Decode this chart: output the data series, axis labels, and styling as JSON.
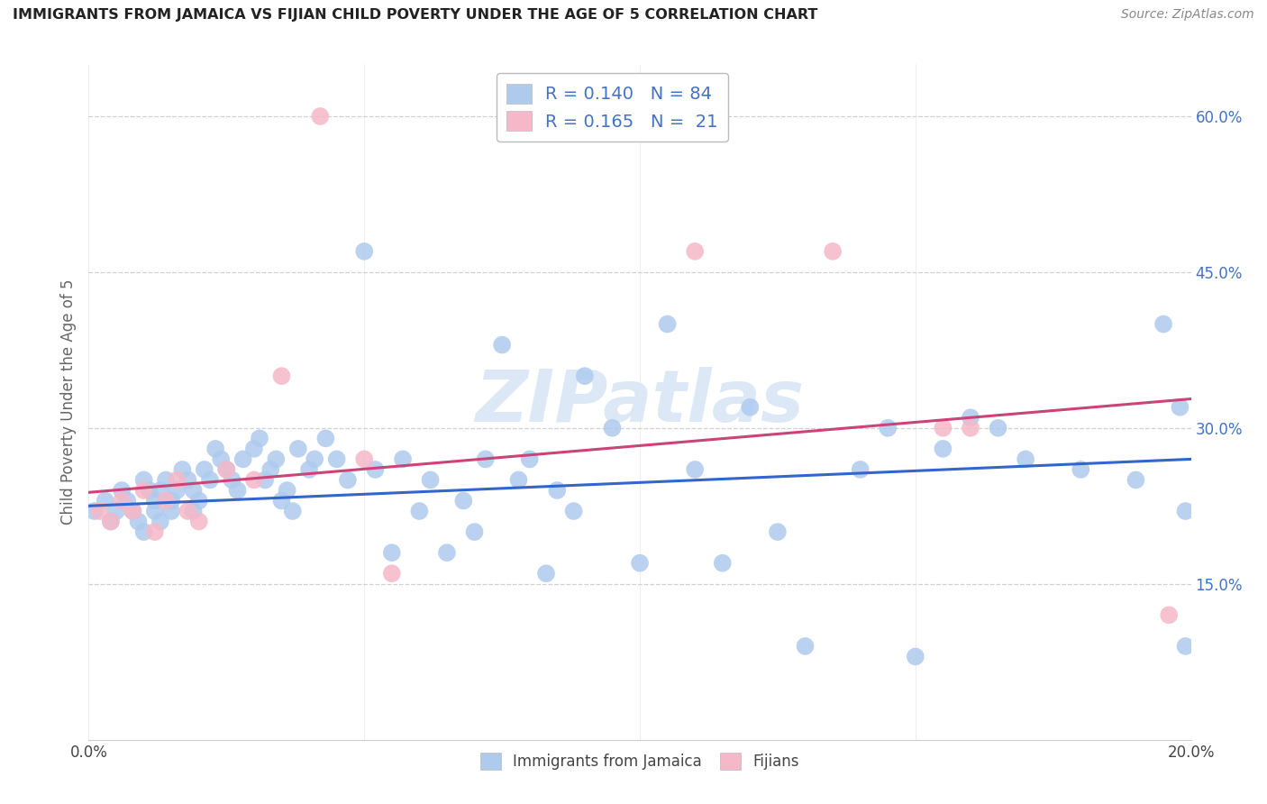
{
  "title": "IMMIGRANTS FROM JAMAICA VS FIJIAN CHILD POVERTY UNDER THE AGE OF 5 CORRELATION CHART",
  "source": "Source: ZipAtlas.com",
  "ylabel": "Child Poverty Under the Age of 5",
  "xlim": [
    0.0,
    0.2
  ],
  "ylim": [
    0.0,
    0.65
  ],
  "xtick_positions": [
    0.0,
    0.05,
    0.1,
    0.15,
    0.2
  ],
  "xticklabels": [
    "0.0%",
    "",
    "",
    "",
    "20.0%"
  ],
  "ytick_positions": [
    0.15,
    0.3,
    0.45,
    0.6
  ],
  "yticklabels": [
    "15.0%",
    "30.0%",
    "45.0%",
    "60.0%"
  ],
  "grid_color": "#d0d0d0",
  "jamaica_scatter_color": "#aecbee",
  "fiji_scatter_color": "#f5b8c8",
  "jamaica_line_color": "#3366cc",
  "fiji_line_color": "#cc4477",
  "jamaica_line_y0": 0.225,
  "jamaica_line_y1": 0.27,
  "fiji_line_y0": 0.238,
  "fiji_line_y1": 0.328,
  "r_jamaica": "0.140",
  "n_jamaica": "84",
  "r_fiji": "0.165",
  "n_fiji": "21",
  "legend_label_color": "#4472c4",
  "legend_labels_bottom": [
    "Immigrants from Jamaica",
    "Fijians"
  ],
  "watermark": "ZIPatlas",
  "source_color": "#888888",
  "title_color": "#222222",
  "ylabel_color": "#666666",
  "tick_color_x": "#444444",
  "tick_color_y": "#4472c4",
  "jamaica_x": [
    0.001,
    0.003,
    0.004,
    0.005,
    0.006,
    0.007,
    0.008,
    0.009,
    0.01,
    0.01,
    0.011,
    0.012,
    0.012,
    0.013,
    0.013,
    0.014,
    0.015,
    0.015,
    0.016,
    0.017,
    0.018,
    0.019,
    0.019,
    0.02,
    0.021,
    0.022,
    0.023,
    0.024,
    0.025,
    0.026,
    0.027,
    0.028,
    0.03,
    0.031,
    0.032,
    0.033,
    0.034,
    0.035,
    0.036,
    0.037,
    0.038,
    0.04,
    0.041,
    0.043,
    0.045,
    0.047,
    0.05,
    0.052,
    0.055,
    0.057,
    0.06,
    0.062,
    0.065,
    0.068,
    0.07,
    0.072,
    0.075,
    0.078,
    0.08,
    0.083,
    0.085,
    0.088,
    0.09,
    0.095,
    0.1,
    0.105,
    0.11,
    0.115,
    0.12,
    0.125,
    0.13,
    0.14,
    0.145,
    0.15,
    0.155,
    0.16,
    0.165,
    0.17,
    0.18,
    0.19,
    0.195,
    0.198,
    0.199,
    0.199
  ],
  "jamaica_y": [
    0.22,
    0.23,
    0.21,
    0.22,
    0.24,
    0.23,
    0.22,
    0.21,
    0.2,
    0.25,
    0.24,
    0.23,
    0.22,
    0.21,
    0.24,
    0.25,
    0.23,
    0.22,
    0.24,
    0.26,
    0.25,
    0.24,
    0.22,
    0.23,
    0.26,
    0.25,
    0.28,
    0.27,
    0.26,
    0.25,
    0.24,
    0.27,
    0.28,
    0.29,
    0.25,
    0.26,
    0.27,
    0.23,
    0.24,
    0.22,
    0.28,
    0.26,
    0.27,
    0.29,
    0.27,
    0.25,
    0.47,
    0.26,
    0.18,
    0.27,
    0.22,
    0.25,
    0.18,
    0.23,
    0.2,
    0.27,
    0.38,
    0.25,
    0.27,
    0.16,
    0.24,
    0.22,
    0.35,
    0.3,
    0.17,
    0.4,
    0.26,
    0.17,
    0.32,
    0.2,
    0.09,
    0.26,
    0.3,
    0.08,
    0.28,
    0.31,
    0.3,
    0.27,
    0.26,
    0.25,
    0.4,
    0.32,
    0.22,
    0.09
  ],
  "fiji_x": [
    0.002,
    0.004,
    0.006,
    0.008,
    0.01,
    0.012,
    0.014,
    0.016,
    0.018,
    0.02,
    0.025,
    0.03,
    0.035,
    0.042,
    0.05,
    0.055,
    0.11,
    0.135,
    0.155,
    0.16,
    0.196
  ],
  "fiji_y": [
    0.22,
    0.21,
    0.23,
    0.22,
    0.24,
    0.2,
    0.23,
    0.25,
    0.22,
    0.21,
    0.26,
    0.25,
    0.35,
    0.6,
    0.27,
    0.16,
    0.47,
    0.47,
    0.3,
    0.3,
    0.12
  ]
}
